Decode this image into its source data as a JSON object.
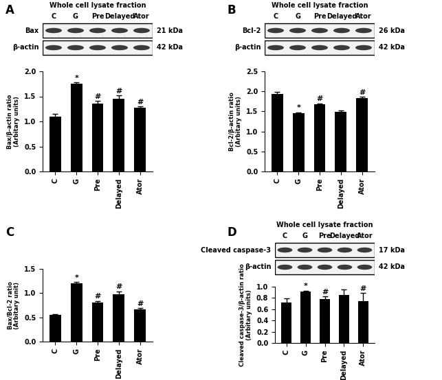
{
  "chart_data": [
    {
      "type": "bar",
      "panel": "A",
      "title": "Whole cell lysate fraction",
      "blot": {
        "lanes": [
          "C",
          "G",
          "Pre",
          "Delayed",
          "Ator"
        ],
        "bands": [
          {
            "name": "Bax",
            "size": "21 kDa"
          },
          {
            "name": "β-actin",
            "size": "42 kDa"
          }
        ]
      },
      "ylabel": "Bax/β-actin ratio\n(Arbitary units)",
      "categories": [
        "C",
        "G",
        "Pre",
        "Delayed",
        "Ator"
      ],
      "values": [
        1.1,
        1.75,
        1.35,
        1.45,
        1.27
      ],
      "errors": [
        0.05,
        0.03,
        0.06,
        0.07,
        0.03
      ],
      "significance": [
        null,
        "*",
        "#",
        "#",
        "#"
      ],
      "color": "black",
      "ylim": [
        0,
        2.0
      ],
      "yticks": [
        {
          "value": 0,
          "label": "0.0"
        },
        {
          "value": 0.5,
          "label": "0.5"
        },
        {
          "value": 1.0,
          "label": "1.0"
        },
        {
          "value": 1.5,
          "label": "1.5"
        },
        {
          "value": 2.0,
          "label": "2.0"
        }
      ]
    },
    {
      "type": "bar",
      "panel": "B",
      "title": "Whole cell lysate fraction",
      "blot": {
        "lanes": [
          "C",
          "G",
          "Pre",
          "Delayed",
          "Ator"
        ],
        "bands": [
          {
            "name": "Bcl-2",
            "size": "26 kDa"
          },
          {
            "name": "β-actin",
            "size": "42 kDa"
          }
        ]
      },
      "ylabel": "Bcl-2/β-actin ratio\n(Arbitary units)",
      "categories": [
        "C",
        "G",
        "Pre",
        "Delayed",
        "Ator"
      ],
      "values": [
        1.93,
        1.45,
        1.67,
        1.49,
        1.83
      ],
      "errors": [
        0.05,
        0.03,
        0.03,
        0.04,
        0.03
      ],
      "significance": [
        null,
        "*",
        "#",
        null,
        "#"
      ],
      "color": "black",
      "ylim": [
        0,
        2.5
      ],
      "yticks": [
        {
          "value": 0,
          "label": "0.0"
        },
        {
          "value": 0.5,
          "label": "0.5"
        },
        {
          "value": 1.0,
          "label": "1.0"
        },
        {
          "value": 1.5,
          "label": "1.5"
        },
        {
          "value": 2.0,
          "label": "2.0"
        },
        {
          "value": 2.5,
          "label": "2.5"
        }
      ]
    },
    {
      "type": "bar",
      "panel": "C",
      "ylabel": "Bax/Bcl-2 ratio\n(Arbitary unit)",
      "categories": [
        "C",
        "G",
        "Pre",
        "Delayed",
        "Ator"
      ],
      "values": [
        0.55,
        1.2,
        0.8,
        0.98,
        0.66
      ],
      "errors": [
        0.02,
        0.03,
        0.04,
        0.06,
        0.03
      ],
      "significance": [
        null,
        "*",
        "#",
        "#",
        "#"
      ],
      "color": "black",
      "ylim": [
        0,
        1.5
      ],
      "yticks": [
        {
          "value": 0,
          "label": "0.0"
        },
        {
          "value": 0.5,
          "label": "0.5"
        },
        {
          "value": 1.0,
          "label": "1.0"
        },
        {
          "value": 1.5,
          "label": "1.5"
        }
      ]
    },
    {
      "type": "bar",
      "panel": "D",
      "title": "Whole cell lysate fraction",
      "blot": {
        "lanes": [
          "C",
          "G",
          "Pre",
          "Delayed",
          "Ator"
        ],
        "bands": [
          {
            "name": "Cleaved caspase-3",
            "size": "17 kDa"
          },
          {
            "name": "β-actin",
            "size": "42 kDa"
          }
        ]
      },
      "ylabel": "Cleaved caspase-3/β-actin ratio\n(Arbitary units)",
      "categories": [
        "C",
        "G",
        "Pre",
        "Delayed",
        "Ator"
      ],
      "values": [
        0.72,
        0.91,
        0.78,
        0.85,
        0.75
      ],
      "errors": [
        0.07,
        0.02,
        0.05,
        0.1,
        0.14
      ],
      "significance": [
        null,
        "*",
        "#",
        null,
        "#"
      ],
      "color": "black",
      "ylim": [
        0,
        1.0
      ],
      "yticks": [
        {
          "value": 0,
          "label": "0.0"
        },
        {
          "value": 0.2,
          "label": "0.2"
        },
        {
          "value": 0.4,
          "label": "0.4"
        },
        {
          "value": 0.6,
          "label": "0.6"
        },
        {
          "value": 0.8,
          "label": "0.8"
        },
        {
          "value": 1.0,
          "label": "1.0"
        }
      ]
    }
  ]
}
